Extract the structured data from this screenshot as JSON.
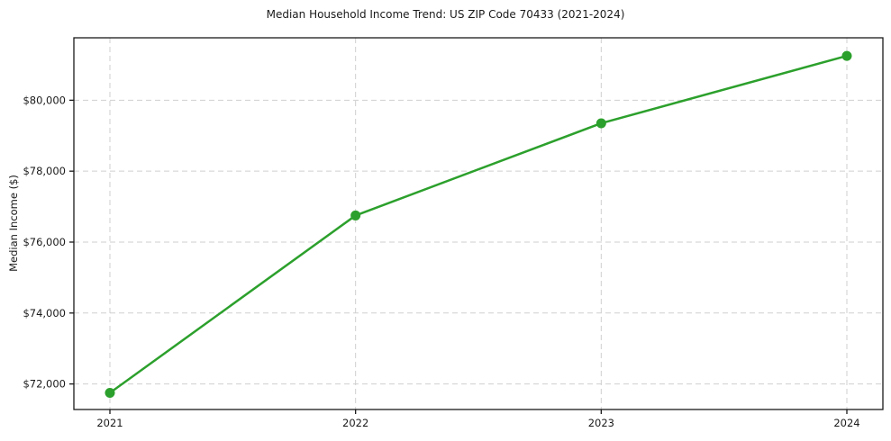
{
  "chart_data": {
    "type": "line",
    "title": "Median Household Income Trend: US ZIP Code 70433 (2021-2024)",
    "xlabel": "",
    "ylabel": "Median Income ($)",
    "x_labels": [
      "2021",
      "2022",
      "2023",
      "2024"
    ],
    "series": [
      {
        "name": "Median Household Income",
        "values": [
          71750,
          76750,
          79350,
          81250
        ]
      }
    ],
    "yticks": [
      72000,
      74000,
      76000,
      78000,
      80000
    ],
    "ytick_labels": [
      "$72,000",
      "$74,000",
      "$76,000",
      "$78,000",
      "$80,000"
    ],
    "ylim": [
      71280,
      81760
    ],
    "legend_position": "none",
    "grid": "dashed, both axes",
    "colors": {
      "line": "#2ca02c",
      "marker": "#2ca02c",
      "grid": "#cfcfcf",
      "spine": "#1a1a1a",
      "tick_text": "#1a1a1a",
      "background": "#ffffff"
    }
  }
}
